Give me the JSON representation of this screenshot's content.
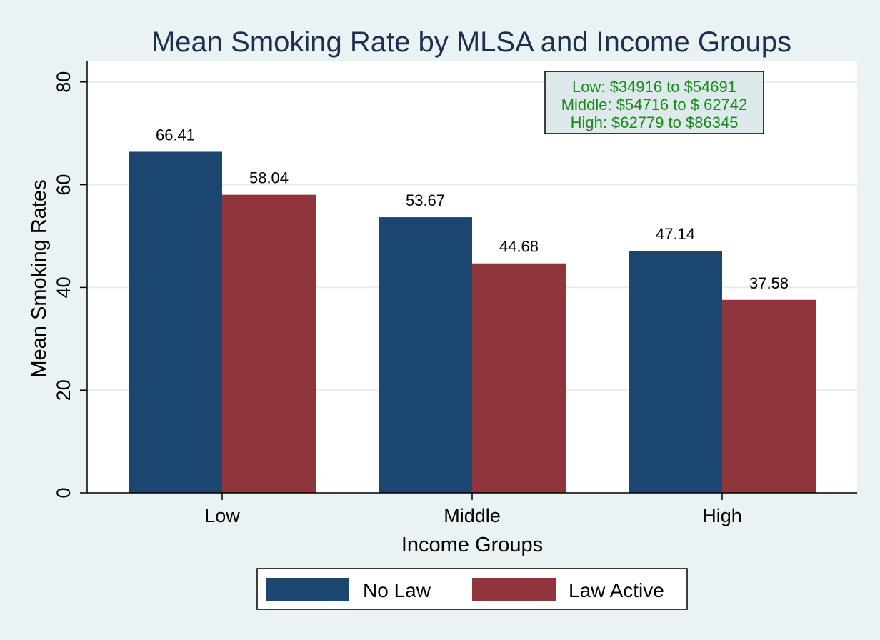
{
  "chart_data": {
    "type": "bar",
    "title": "Mean Smoking Rate by MLSA and Income Groups",
    "xlabel": "Income Groups",
    "ylabel": "Mean Smoking Rates",
    "categories": [
      "Low",
      "Middle",
      "High"
    ],
    "series": [
      {
        "name": "No Law",
        "values": [
          66.41,
          53.67,
          47.14
        ],
        "color": "#1a4670"
      },
      {
        "name": "Law Active",
        "values": [
          58.04,
          44.68,
          37.58
        ],
        "color": "#90353b"
      }
    ],
    "value_labels": [
      [
        "66.41",
        "53.67",
        "47.14"
      ],
      [
        "58.04",
        "44.68",
        "37.58"
      ]
    ],
    "ylim": [
      0,
      84
    ],
    "yticks": [
      0,
      20,
      40,
      60,
      80
    ],
    "grid": true,
    "legend_position": "bottom",
    "note": {
      "lines": [
        "Low: $34916 to $54691",
        "Middle: $54716 to $ 62742",
        "High: $62779 to $86345"
      ],
      "text_color": "#1a8a1a",
      "background": "#dde9ea"
    },
    "colors": {
      "background": "#eaf2f3",
      "plot_background": "#ffffff",
      "grid": "#e6eef0",
      "title": "#1b2f4f"
    }
  }
}
